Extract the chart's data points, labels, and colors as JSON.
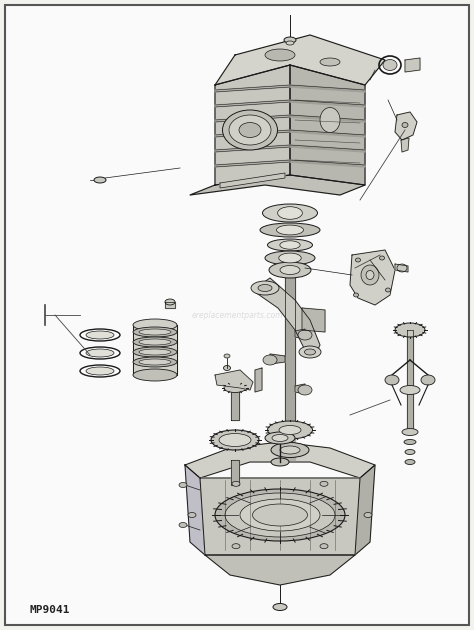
{
  "background_color": "#f2f2ee",
  "border_color": "#888888",
  "line_color": "#1a1a1a",
  "watermark_text": "ereplacementparts.com",
  "watermark_color": "#c0c0c0",
  "label_text": "MP9041",
  "label_fontsize": 8,
  "figsize": [
    4.74,
    6.3
  ],
  "dpi": 100
}
